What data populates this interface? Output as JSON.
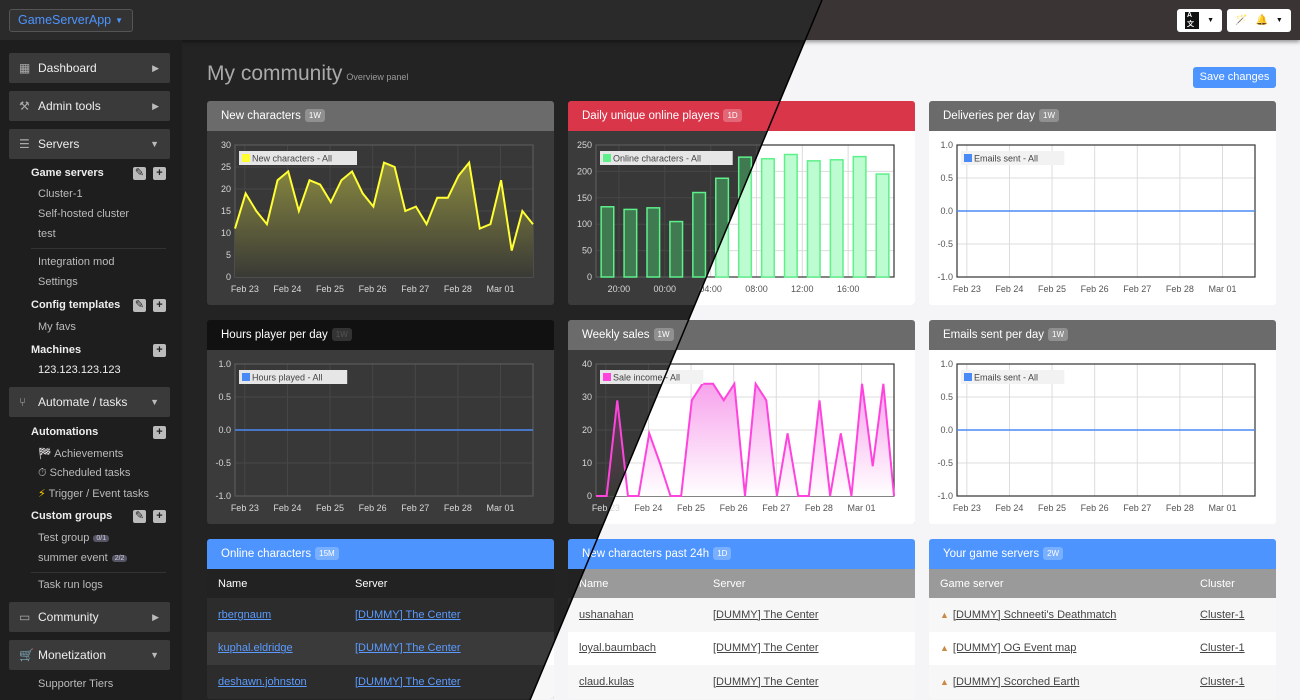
{
  "topbar": {
    "brand": "GameServerApp",
    "lang_icon": "language-icon",
    "tools_icon": "magic-wand-icon",
    "bell_icon": "bell-icon"
  },
  "sidebar": {
    "dashboard": "Dashboard",
    "admin_tools": "Admin tools",
    "servers": "Servers",
    "game_servers": "Game servers",
    "game_server_items": [
      "Cluster-1",
      "Self-hosted cluster",
      "test"
    ],
    "integration_mod": "Integration mod",
    "settings": "Settings",
    "config_templates": "Config templates",
    "my_favs": "My favs",
    "machines": "Machines",
    "machine_ip": "123.123.123.123",
    "automate": "Automate / tasks",
    "automations": "Automations",
    "achievements": "Achievements",
    "scheduled": "Scheduled tasks",
    "trigger": "Trigger / Event tasks",
    "custom_groups": "Custom groups",
    "test_group": "Test group",
    "test_group_badge": "0/1",
    "summer_event": "summer event",
    "summer_event_badge": "2/2",
    "task_logs": "Task run logs",
    "community": "Community",
    "monetization": "Monetization",
    "supporter_tiers": "Supporter Tiers"
  },
  "page": {
    "title": "My community",
    "subtitle": "Overview panel",
    "save": "Save changes"
  },
  "panels": {
    "new_characters": {
      "title": "New characters",
      "badge": "1W",
      "color": "#6b6b6b"
    },
    "daily_online": {
      "title": "Daily unique online players",
      "badge": "1D",
      "color": "#d9364a"
    },
    "deliveries": {
      "title": "Deliveries per day",
      "badge": "1W",
      "color": "#6b6b6b"
    },
    "hours_played": {
      "title": "Hours player per day",
      "badge": "1W",
      "color": "#111111"
    },
    "weekly_sales": {
      "title": "Weekly sales",
      "badge": "1W",
      "color": "#6b6b6b"
    },
    "emails_sent": {
      "title": "Emails sent per day",
      "badge": "1W",
      "color": "#6b6b6b"
    },
    "online_characters": {
      "title": "Online characters",
      "badge": "15M",
      "columns": [
        "Name",
        "Server"
      ],
      "rows": [
        [
          "rbergnaum",
          "[DUMMY] The Center"
        ],
        [
          "kuphal.eldridge",
          "[DUMMY] The Center"
        ],
        [
          "deshawn.johnston",
          "[DUMMY] The Center"
        ]
      ]
    },
    "new_characters_24h": {
      "title": "New characters past 24h",
      "badge": "1D",
      "columns": [
        "Name",
        "Server"
      ],
      "rows": [
        [
          "ushanahan",
          "[DUMMY] The Center"
        ],
        [
          "loyal.baumbach",
          "[DUMMY] The Center"
        ],
        [
          "claud.kulas",
          "[DUMMY] The Center"
        ]
      ]
    },
    "game_servers": {
      "title": "Your game servers",
      "badge": "2W",
      "columns": [
        "Game server",
        "Cluster"
      ],
      "rows": [
        [
          "[DUMMY] Schneeti's Deathmatch",
          "Cluster-1"
        ],
        [
          "[DUMMY] OG Event map",
          "Cluster-1"
        ],
        [
          "[DUMMY] Scorched Earth",
          "Cluster-1"
        ]
      ]
    }
  },
  "chart_data": [
    {
      "id": "new_characters",
      "type": "area",
      "legend": "New characters - All",
      "color": "#ffff33",
      "ylim": [
        0,
        30
      ],
      "yticks": [
        0,
        5,
        10,
        15,
        20,
        25,
        30
      ],
      "xticks": [
        "Feb 23",
        "Feb 24",
        "Feb 25",
        "Feb 26",
        "Feb 27",
        "Feb 28",
        "Mar 01"
      ],
      "values": [
        11,
        19,
        15,
        12,
        22,
        24,
        15,
        22,
        21,
        17,
        22,
        24,
        19,
        16,
        26,
        25,
        15,
        16,
        12,
        18,
        18,
        23,
        26,
        11,
        12,
        22,
        6,
        15,
        12
      ]
    },
    {
      "id": "daily_online",
      "type": "bar",
      "legend": "Online characters - All",
      "color": "#5ef08a",
      "ylim": [
        0,
        250
      ],
      "yticks": [
        0,
        50,
        100,
        150,
        200,
        250
      ],
      "xticks": [
        "20:00",
        "00:00",
        "04:00",
        "08:00",
        "12:00",
        "16:00"
      ],
      "values": [
        133,
        128,
        131,
        105,
        160,
        187,
        227,
        224,
        232,
        220,
        222,
        228,
        195
      ]
    },
    {
      "id": "deliveries",
      "type": "line",
      "legend": "Emails sent - All",
      "color": "#4a8af4",
      "ylim": [
        -1,
        1
      ],
      "yticks": [
        "-1.0",
        "-0.5",
        "0.0",
        "0.5",
        "1.0"
      ],
      "xticks": [
        "Feb 23",
        "Feb 24",
        "Feb 25",
        "Feb 26",
        "Feb 27",
        "Feb 28",
        "Mar 01"
      ],
      "values": [
        0,
        0,
        0,
        0,
        0,
        0,
        0,
        0
      ]
    },
    {
      "id": "hours_played",
      "type": "line",
      "legend": "Hours played - All",
      "color": "#4a8af4",
      "ylim": [
        -1,
        1
      ],
      "yticks": [
        "-1.0",
        "-0.5",
        "0.0",
        "0.5",
        "1.0"
      ],
      "xticks": [
        "Feb 23",
        "Feb 24",
        "Feb 25",
        "Feb 26",
        "Feb 27",
        "Feb 28",
        "Mar 01"
      ],
      "values": [
        0,
        0,
        0,
        0,
        0,
        0,
        0,
        0
      ]
    },
    {
      "id": "weekly_sales",
      "type": "area",
      "legend": "Sale income - All",
      "color": "#ff44dd",
      "ylim": [
        0,
        40
      ],
      "yticks": [
        0,
        10,
        20,
        30,
        40
      ],
      "xticks": [
        "Feb 23",
        "Feb 24",
        "Feb 25",
        "Feb 26",
        "Feb 27",
        "Feb 28",
        "Mar 01"
      ],
      "values": [
        0,
        0,
        29,
        0,
        0,
        19,
        10,
        0,
        0,
        29,
        34,
        34,
        29,
        34,
        0,
        34,
        29,
        0,
        19,
        0,
        0,
        29,
        0,
        19,
        0,
        34,
        9,
        34,
        0
      ]
    },
    {
      "id": "emails_sent",
      "type": "line",
      "legend": "Emails sent - All",
      "color": "#4a8af4",
      "ylim": [
        -1,
        1
      ],
      "yticks": [
        "-1.0",
        "-0.5",
        "0.0",
        "0.5",
        "1.0"
      ],
      "xticks": [
        "Feb 23",
        "Feb 24",
        "Feb 25",
        "Feb 26",
        "Feb 27",
        "Feb 28",
        "Mar 01"
      ],
      "values": [
        0,
        0,
        0,
        0,
        0,
        0,
        0,
        0
      ]
    }
  ]
}
